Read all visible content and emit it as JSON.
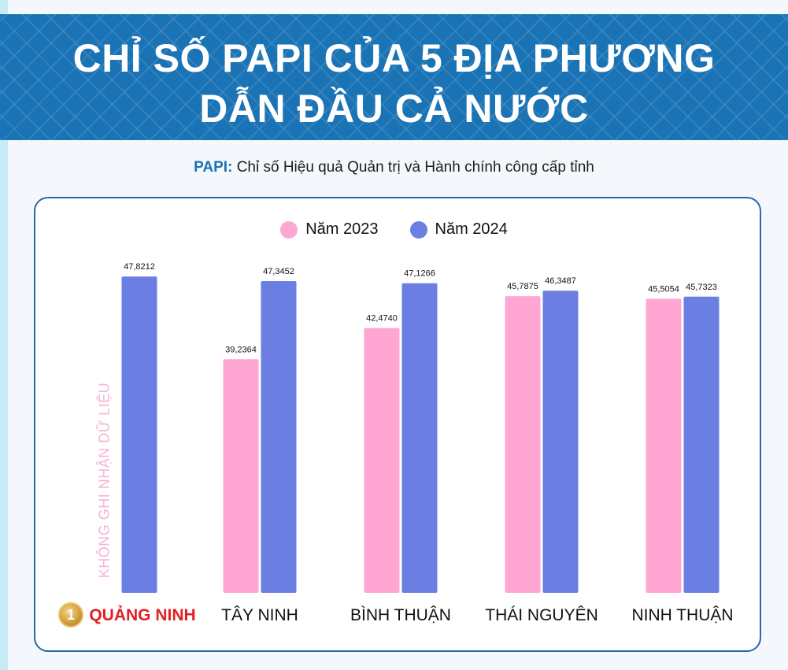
{
  "header": {
    "title_line1": "CHỈ SỐ PAPI CỦA 5 ĐỊA PHƯƠNG",
    "title_line2": "DẪN ĐẦU CẢ NƯỚC"
  },
  "subtitle": {
    "prefix": "PAPI:",
    "text": "Chỉ số Hiệu quả Quản trị và Hành chính công cấp tỉnh"
  },
  "colors": {
    "header_bg": "#1a73b5",
    "series_2023": "#ffa6d3",
    "series_2024": "#6b7fe3",
    "highlight": "#e31e24"
  },
  "chart_data": {
    "type": "bar",
    "categories": [
      "QUẢNG NINH",
      "TÂY NINH",
      "BÌNH THUẬN",
      "THÁI NGUYÊN",
      "NINH THUẬN"
    ],
    "series": [
      {
        "name": "Năm 2023",
        "values": [
          null,
          39.2364,
          42.474,
          45.7875,
          45.5054
        ],
        "labels": [
          "",
          "39,2364",
          "42,4740",
          "45,7875",
          "45,5054"
        ]
      },
      {
        "name": "Năm 2024",
        "values": [
          47.8212,
          47.3452,
          47.1266,
          46.3487,
          45.7323
        ],
        "labels": [
          "47,8212",
          "47,3452",
          "47,1266",
          "46,3487",
          "45,7323"
        ]
      }
    ],
    "ylim": [
      15,
      48
    ],
    "no_data_note": "KHÔNG GHI NHẬN DỮ LIỆU",
    "highlight_category": 0,
    "rank_badge": "1",
    "legend_placement": "top-center",
    "grid": false
  }
}
